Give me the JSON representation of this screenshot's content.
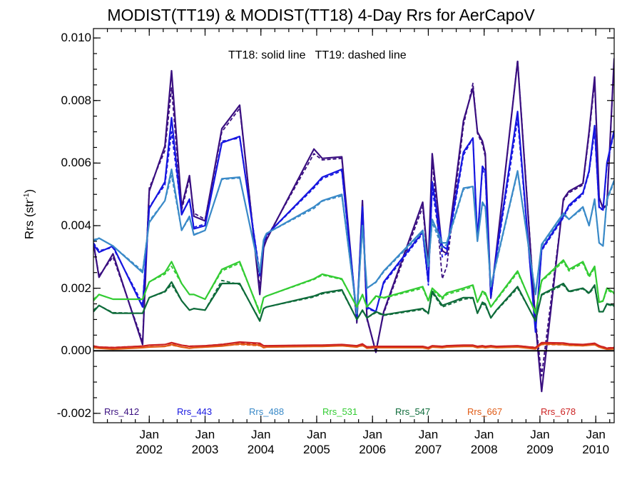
{
  "chart_data": {
    "type": "line",
    "title": "MODIST(TT19) & MODIST(TT18) 4-Day Rrs for AerCapoV",
    "annotation": "TT18: solid line   TT19: dashed line",
    "ylabel_main": "Rrs (str",
    "ylabel_sup": "-1",
    "ylabel_end": ")",
    "ylim": [
      -0.0023,
      0.0103
    ],
    "xlim": [
      2001.0,
      2010.33
    ],
    "y_ticks": [
      "-0.002",
      "0.000",
      "0.002",
      "0.004",
      "0.006",
      "0.008",
      "0.010"
    ],
    "x_ticks": [
      {
        "month": "Jan",
        "year": "2002"
      },
      {
        "month": "Jan",
        "year": "2003"
      },
      {
        "month": "Jan",
        "year": "2004"
      },
      {
        "month": "Jan",
        "year": "2005"
      },
      {
        "month": "Jan",
        "year": "2006"
      },
      {
        "month": "Jan",
        "year": "2007"
      },
      {
        "month": "Jan",
        "year": "2008"
      },
      {
        "month": "Jan",
        "year": "2009"
      },
      {
        "month": "Jan",
        "year": "2010"
      }
    ],
    "x": [
      2001.0,
      2001.1,
      2001.35,
      2001.88,
      2002.0,
      2002.28,
      2002.4,
      2002.58,
      2002.72,
      2002.8,
      2003.0,
      2003.3,
      2003.62,
      2003.98,
      2004.05,
      2004.1,
      2004.95,
      2005.1,
      2005.45,
      2005.72,
      2005.82,
      2005.9,
      2006.06,
      2006.2,
      2006.9,
      2007.0,
      2007.07,
      2007.25,
      2007.33,
      2007.63,
      2007.8,
      2007.88,
      2007.97,
      2008.02,
      2008.12,
      2008.22,
      2008.6,
      2008.92,
      2009.03,
      2009.42,
      2009.52,
      2009.77,
      2009.88,
      2009.98,
      2010.06,
      2010.13,
      2010.2,
      2010.33
    ],
    "series": [
      {
        "name": "Rrs_412",
        "color": "#3a0f80",
        "solid": [
          0.00345,
          0.00235,
          0.0031,
          0.0002,
          0.0051,
          0.00655,
          0.00895,
          0.0046,
          0.0056,
          0.0043,
          0.00415,
          0.0071,
          0.00785,
          0.0018,
          0.0033,
          0.00355,
          0.00645,
          0.00615,
          0.0062,
          0.00095,
          0.0048,
          0.00105,
          -5e-05,
          0.00125,
          0.00475,
          0.00275,
          0.0063,
          0.0032,
          0.0031,
          0.00735,
          0.0084,
          0.007,
          0.0067,
          0.0063,
          0.0017,
          0.0032,
          0.00925,
          0.0009,
          -0.0013,
          0.00485,
          0.0051,
          0.00535,
          0.007,
          0.00875,
          0.0049,
          0.00455,
          0.00465,
          0.00935
        ],
        "dashed": [
          0.00345,
          0.0024,
          0.003,
          0.0003,
          0.0052,
          0.0064,
          0.0084,
          0.0045,
          0.0055,
          0.0044,
          0.0042,
          0.007,
          0.00775,
          0.002,
          0.0034,
          0.0036,
          0.0063,
          0.0061,
          0.00615,
          0.00085,
          0.0047,
          0.001,
          0.0,
          0.0012,
          0.0046,
          0.00265,
          0.0061,
          0.0023,
          0.0027,
          0.0072,
          0.00855,
          0.00695,
          0.0066,
          0.0062,
          0.00165,
          0.0031,
          0.0093,
          0.001,
          -0.0008,
          0.0048,
          0.00505,
          0.0053,
          0.0069,
          0.0086,
          0.00485,
          0.0046,
          0.00465,
          0.0093
        ]
      },
      {
        "name": "Rrs_443",
        "color": "#1616e0",
        "solid": [
          0.0034,
          0.00315,
          0.00335,
          0.0014,
          0.00455,
          0.0054,
          0.00745,
          0.00435,
          0.00485,
          0.0039,
          0.004,
          0.00665,
          0.00685,
          0.0024,
          0.00345,
          0.0037,
          0.00525,
          0.00555,
          0.0058,
          0.0011,
          0.0046,
          0.0014,
          0.00125,
          0.0022,
          0.0038,
          0.0022,
          0.0054,
          0.00335,
          0.00325,
          0.00635,
          0.0068,
          0.00355,
          0.0059,
          0.00575,
          0.00175,
          0.0031,
          0.00765,
          0.0006,
          0.00325,
          0.0043,
          0.00465,
          0.00505,
          0.00575,
          0.0072,
          0.0046,
          0.0045,
          0.006,
          0.00705
        ],
        "dashed": [
          0.00345,
          0.0032,
          0.0033,
          0.0015,
          0.0046,
          0.0053,
          0.007,
          0.0044,
          0.0048,
          0.00395,
          0.00405,
          0.0067,
          0.0068,
          0.0025,
          0.0035,
          0.0037,
          0.0052,
          0.0055,
          0.00575,
          0.001,
          0.00455,
          0.00135,
          0.00125,
          0.00215,
          0.00375,
          0.0021,
          0.0052,
          0.003,
          0.0031,
          0.00625,
          0.0068,
          0.0036,
          0.0058,
          0.0056,
          0.0017,
          0.003,
          0.0074,
          0.0007,
          0.0032,
          0.00425,
          0.0046,
          0.005,
          0.0057,
          0.007,
          0.00455,
          0.0045,
          0.0059,
          0.007
        ]
      },
      {
        "name": "Rrs_488",
        "color": "#3a8ac8",
        "solid": [
          0.0035,
          0.0036,
          0.00335,
          0.0025,
          0.0041,
          0.0048,
          0.0058,
          0.00385,
          0.0043,
          0.0037,
          0.00385,
          0.0055,
          0.00555,
          0.0025,
          0.00355,
          0.00375,
          0.0046,
          0.0048,
          0.005,
          0.0012,
          0.004,
          0.002,
          0.0022,
          0.00255,
          0.00385,
          0.0027,
          0.0042,
          0.00345,
          0.00345,
          0.0052,
          0.00525,
          0.0035,
          0.00475,
          0.0046,
          0.00205,
          0.00285,
          0.00575,
          0.0018,
          0.0034,
          0.0044,
          0.0042,
          0.0046,
          0.004,
          0.00485,
          0.00345,
          0.00335,
          0.00485,
          0.00545
        ],
        "dashed": [
          0.00355,
          0.0036,
          0.00335,
          0.00255,
          0.00415,
          0.0048,
          0.0056,
          0.00385,
          0.00425,
          0.00372,
          0.00385,
          0.00548,
          0.00552,
          0.00255,
          0.00358,
          0.00375,
          0.00455,
          0.00478,
          0.00495,
          0.00118,
          0.00395,
          0.002,
          0.00218,
          0.00252,
          0.0038,
          0.00265,
          0.0041,
          0.0033,
          0.0034,
          0.00515,
          0.00525,
          0.00352,
          0.0047,
          0.00455,
          0.00205,
          0.0028,
          0.0057,
          0.00185,
          0.00335,
          0.00435,
          0.0042,
          0.00455,
          0.004,
          0.0048,
          0.00345,
          0.00335,
          0.0048,
          0.0054
        ]
      },
      {
        "name": "Rrs_531",
        "color": "#33cc33",
        "solid": [
          0.0016,
          0.0018,
          0.00165,
          0.00165,
          0.0022,
          0.0025,
          0.00285,
          0.00215,
          0.0018,
          0.0018,
          0.00165,
          0.0026,
          0.00285,
          0.0012,
          0.0017,
          0.00175,
          0.0023,
          0.00245,
          0.0023,
          0.0014,
          0.0018,
          0.0014,
          0.00175,
          0.0017,
          0.00205,
          0.0016,
          0.002,
          0.0017,
          0.00185,
          0.002,
          0.0021,
          0.00155,
          0.0019,
          0.00185,
          0.0014,
          0.00165,
          0.00255,
          0.0012,
          0.00225,
          0.0029,
          0.0026,
          0.00285,
          0.0024,
          0.0027,
          0.00155,
          0.0016,
          0.002,
          0.00185
        ],
        "dashed": [
          0.00165,
          0.0018,
          0.00165,
          0.00165,
          0.0022,
          0.00245,
          0.0027,
          0.00215,
          0.0018,
          0.0018,
          0.00165,
          0.00255,
          0.0028,
          0.00125,
          0.0017,
          0.00175,
          0.00228,
          0.00242,
          0.00228,
          0.0014,
          0.00178,
          0.0014,
          0.00172,
          0.00168,
          0.002,
          0.00158,
          0.00195,
          0.00165,
          0.0018,
          0.00195,
          0.00205,
          0.00155,
          0.00185,
          0.0018,
          0.0014,
          0.00162,
          0.0025,
          0.00125,
          0.00222,
          0.00285,
          0.00255,
          0.0028,
          0.00235,
          0.00265,
          0.00155,
          0.00158,
          0.00195,
          0.00182
        ]
      },
      {
        "name": "Rrs_547",
        "color": "#0e6b3a",
        "solid": [
          0.00125,
          0.00145,
          0.0012,
          0.0012,
          0.0017,
          0.0019,
          0.0022,
          0.0016,
          0.0013,
          0.00135,
          0.0013,
          0.00215,
          0.00215,
          0.00095,
          0.00135,
          0.0014,
          0.00175,
          0.00185,
          0.00195,
          0.001,
          0.0013,
          0.00105,
          0.00125,
          0.00115,
          0.00135,
          0.0012,
          0.0019,
          0.00145,
          0.0015,
          0.0017,
          0.0017,
          0.0012,
          0.00155,
          0.0015,
          0.00105,
          0.0013,
          0.00205,
          0.00095,
          0.0018,
          0.00215,
          0.0019,
          0.002,
          0.00185,
          0.0021,
          0.00125,
          0.00125,
          0.0015,
          0.00145
        ],
        "dashed": [
          0.0013,
          0.00145,
          0.00122,
          0.0012,
          0.0017,
          0.00188,
          0.00212,
          0.0016,
          0.0013,
          0.00135,
          0.0013,
          0.00225,
          0.00212,
          0.00098,
          0.00135,
          0.0014,
          0.00172,
          0.00182,
          0.00192,
          0.001,
          0.00128,
          0.00105,
          0.00122,
          0.00113,
          0.00132,
          0.00118,
          0.00185,
          0.0014,
          0.00145,
          0.00165,
          0.00168,
          0.0012,
          0.0015,
          0.00145,
          0.00105,
          0.00128,
          0.002,
          0.00098,
          0.00178,
          0.0021,
          0.00188,
          0.00198,
          0.00182,
          0.00205,
          0.00125,
          0.00125,
          0.00148,
          0.00142
        ]
      },
      {
        "name": "Rrs_667",
        "color": "#e05a14",
        "solid": [
          0.0001,
          8e-05,
          5e-05,
          0.0001,
          0.00012,
          0.00014,
          0.0002,
          0.00012,
          8e-05,
          0.0001,
          0.00012,
          0.00015,
          0.00022,
          0.00018,
          0.0001,
          0.00012,
          0.00014,
          0.00014,
          0.00016,
          0.00012,
          0.00018,
          8e-05,
          0.0001,
          0.0001,
          0.0001,
          6e-05,
          0.00012,
          0.0001,
          0.00012,
          0.00014,
          0.00014,
          0.0001,
          0.00012,
          0.0001,
          0.00012,
          0.0001,
          0.00012,
          6e-05,
          0.00022,
          0.0002,
          0.00018,
          0.00016,
          0.00018,
          0.0002,
          0.00012,
          8e-05,
          5e-05,
          6e-05
        ],
        "dashed": [
          0.00012,
          8e-05,
          6e-05,
          0.0001,
          0.00013,
          0.00014,
          0.00018,
          0.00012,
          9e-05,
          0.0001,
          0.00012,
          0.00016,
          0.0002,
          0.00016,
          0.00011,
          0.00012,
          0.00014,
          0.00014,
          0.00016,
          0.00012,
          0.00016,
          9e-05,
          0.0001,
          0.0001,
          0.0001,
          7e-05,
          0.00012,
          0.0001,
          0.00012,
          0.00014,
          0.00014,
          0.0001,
          0.00012,
          0.0001,
          0.00012,
          0.0001,
          0.00012,
          7e-05,
          0.0002,
          0.00019,
          0.00017,
          0.00016,
          0.00018,
          0.00019,
          0.00012,
          9e-05,
          6e-05,
          7e-05
        ]
      },
      {
        "name": "Rrs_678",
        "color": "#cc2222",
        "solid": [
          0.00015,
          0.00012,
          0.0001,
          0.00015,
          0.00018,
          0.0002,
          0.00026,
          0.00018,
          0.00014,
          0.00015,
          0.00016,
          0.0002,
          0.00028,
          0.00024,
          0.00016,
          0.00016,
          0.00018,
          0.00018,
          0.0002,
          0.00016,
          0.00022,
          0.00012,
          0.00014,
          0.00014,
          0.00014,
          0.0001,
          0.00016,
          0.00014,
          0.00016,
          0.00018,
          0.00018,
          0.00014,
          0.00016,
          0.00014,
          0.00016,
          0.00014,
          0.00016,
          0.0001,
          0.00026,
          0.00025,
          0.00022,
          0.0002,
          0.00022,
          0.00024,
          0.00016,
          0.00012,
          8e-05,
          0.0001
        ],
        "dashed": [
          0.00016,
          0.00012,
          0.00011,
          0.00015,
          0.00018,
          0.0002,
          0.00024,
          0.00018,
          0.00015,
          0.00015,
          0.00016,
          0.00021,
          0.00026,
          0.00022,
          0.00016,
          0.00016,
          0.00018,
          0.00018,
          0.0002,
          0.00016,
          0.0002,
          0.00013,
          0.00014,
          0.00014,
          0.00014,
          0.00011,
          0.00016,
          0.00014,
          0.00016,
          0.00018,
          0.00018,
          0.00014,
          0.00016,
          0.00014,
          0.00016,
          0.00014,
          0.00016,
          0.00011,
          0.00024,
          0.00024,
          0.00021,
          0.0002,
          0.00022,
          0.00023,
          0.00016,
          0.00013,
          9e-05,
          0.00011
        ]
      }
    ]
  }
}
